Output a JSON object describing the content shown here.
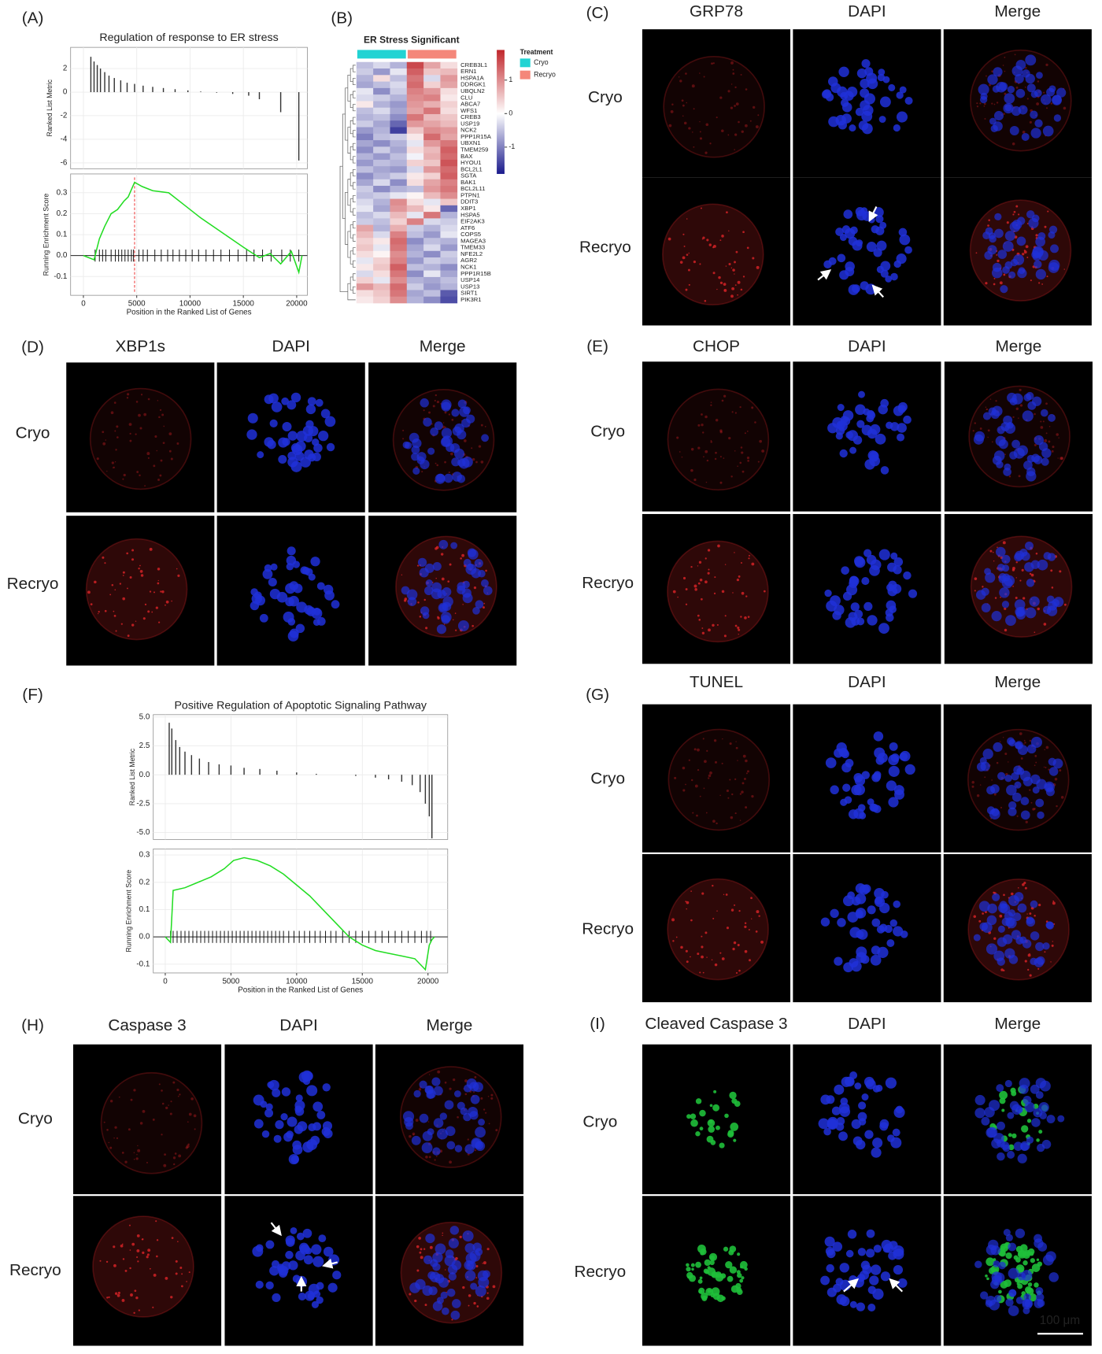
{
  "chart_data": [
    {
      "type": "gsea",
      "panel_label": "(A)",
      "title": "Regulation of response to ER stress",
      "xlabel": "Position in the Ranked List of Genes",
      "xlim": [
        -1200,
        21000
      ],
      "xticks": [
        0,
        5000,
        10000,
        15000,
        20000
      ],
      "metric_ylabel": "Ranked List Metric",
      "metric_ylim": [
        -6.5,
        3.8
      ],
      "metric_yticks": [
        2,
        0,
        -2,
        -4,
        -6
      ],
      "metric_x": [
        700,
        1000,
        1300,
        1600,
        2000,
        2400,
        2900,
        3500,
        4100,
        4800,
        5600,
        6500,
        7500,
        8600,
        9800,
        11000,
        12500,
        14000,
        15500,
        16500,
        18500,
        20200
      ],
      "metric_values": [
        3.0,
        2.6,
        2.3,
        2.0,
        1.7,
        1.4,
        1.2,
        1.0,
        0.8,
        0.7,
        0.55,
        0.45,
        0.35,
        0.25,
        0.15,
        0.05,
        -0.05,
        -0.15,
        -0.3,
        -0.6,
        -1.7,
        -5.8
      ],
      "es_ylabel": "Running Enrichment Score",
      "es_ylim": [
        -0.19,
        0.39
      ],
      "es_yticks": [
        0.3,
        0.2,
        0.1,
        {
          "value": 0,
          "label": "0.0"
        },
        -0.1
      ],
      "es_x": [
        0,
        1000,
        1500,
        2000,
        2600,
        3200,
        3800,
        4200,
        4800,
        5500,
        6500,
        8000,
        9500,
        11000,
        13000,
        15000,
        16500,
        17500,
        18500,
        19500,
        20200,
        20500
      ],
      "es_values": [
        0,
        -0.02,
        0.08,
        0.14,
        0.2,
        0.22,
        0.26,
        0.28,
        0.35,
        0.33,
        0.31,
        0.3,
        0.24,
        0.18,
        0.11,
        0.04,
        -0.01,
        0.01,
        -0.04,
        0.02,
        -0.08,
        0
      ],
      "hit_x": [
        1100,
        1500,
        1800,
        2100,
        2600,
        3000,
        3300,
        3600,
        3900,
        4200,
        4500,
        4700,
        5200,
        5600,
        6000,
        6700,
        7300,
        7900,
        8400,
        9000,
        9600,
        10200,
        10800,
        11500,
        12200,
        12900,
        13700,
        14500,
        15300,
        16000,
        16800,
        17600,
        18600,
        19400,
        20200
      ],
      "peak_x": 4800,
      "color": "#22dd22"
    },
    {
      "type": "heatmap",
      "panel_label": "(B)",
      "title": "ER Stress Significant",
      "rows": [
        "CREB3L1",
        "ERN1",
        "HSPA1A",
        "DDRGK1",
        "UBQLN2",
        "CLU",
        "ABCA7",
        "WFS1",
        "CREB3",
        "USP19",
        "NCK2",
        "PPP1R15A",
        "UBXN1",
        "TMEM259",
        "BAX",
        "HYOU1",
        "BCL2L1",
        "SGTA",
        "BAK1",
        "BCL2L11",
        "PTPN1",
        "DDIT3",
        "XBP1",
        "HSPA5",
        "EIF2AK3",
        "ATF6",
        "COPS5",
        "MAGEA3",
        "TMEM33",
        "NFE2L2",
        "AGR2",
        "NCK1",
        "PPP1R15B",
        "USP14",
        "USP13",
        "SIRT1",
        "PIK3R1"
      ],
      "values": [
        [
          -0.5,
          -0.3,
          -0.6,
          1.6,
          0.8,
          0.3
        ],
        [
          -0.4,
          -0.8,
          -0.2,
          1.4,
          0.5,
          0.6
        ],
        [
          -0.6,
          0.3,
          -0.5,
          1.2,
          -0.3,
          0.9
        ],
        [
          -0.7,
          -0.5,
          -0.3,
          1.3,
          0.4,
          0.8
        ],
        [
          -0.2,
          -0.9,
          -0.4,
          1.1,
          0.9,
          0.3
        ],
        [
          -0.3,
          -0.4,
          -0.6,
          1.0,
          1.1,
          0.2
        ],
        [
          0.2,
          -0.6,
          -0.8,
          0.9,
          0.7,
          0.4
        ],
        [
          -0.5,
          -0.3,
          -0.7,
          0.8,
          1.2,
          0.3
        ],
        [
          -0.6,
          -0.5,
          -0.9,
          1.2,
          0.6,
          0.5
        ],
        [
          -0.4,
          -0.7,
          -1.2,
          0.9,
          0.8,
          0.6
        ],
        [
          -0.8,
          -0.6,
          -1.5,
          0.5,
          1.0,
          0.9
        ],
        [
          -1.0,
          -0.5,
          -0.4,
          0.2,
          1.3,
          0.8
        ],
        [
          -0.7,
          -0.9,
          -0.6,
          -0.2,
          0.9,
          1.2
        ],
        [
          -0.9,
          -0.4,
          -0.7,
          0.3,
          0.6,
          1.4
        ],
        [
          -0.6,
          -0.8,
          -0.5,
          -0.1,
          0.7,
          1.3
        ],
        [
          -0.8,
          -0.5,
          -0.6,
          0.4,
          0.5,
          1.5
        ],
        [
          -0.5,
          -0.7,
          -0.8,
          -0.3,
          0.9,
          1.3
        ],
        [
          -0.9,
          -0.6,
          -0.4,
          0.2,
          0.4,
          1.4
        ],
        [
          -0.7,
          -0.3,
          -0.9,
          0.3,
          0.8,
          1.1
        ],
        [
          -0.4,
          -0.9,
          -0.6,
          -0.5,
          0.9,
          1.2
        ],
        [
          -0.5,
          -0.4,
          -0.2,
          0.1,
          0.6,
          1.0
        ],
        [
          -0.3,
          -0.6,
          1.0,
          0.3,
          -0.2,
          0.5
        ],
        [
          -0.2,
          -0.7,
          0.9,
          0.6,
          0.2,
          -1.2
        ],
        [
          -0.5,
          -0.3,
          0.6,
          -0.2,
          1.2,
          -0.6
        ],
        [
          -0.4,
          -0.5,
          0.4,
          1.1,
          -0.3,
          -0.4
        ],
        [
          0.8,
          -0.6,
          0.7,
          -0.4,
          -0.6,
          -0.3
        ],
        [
          0.6,
          -0.3,
          1.1,
          -0.5,
          -0.8,
          -0.2
        ],
        [
          0.4,
          0.2,
          1.3,
          -0.9,
          -0.5,
          -0.6
        ],
        [
          0.5,
          -0.2,
          1.2,
          -0.7,
          -0.3,
          -0.8
        ],
        [
          0.3,
          0.1,
          1.0,
          -0.6,
          -0.9,
          -0.4
        ],
        [
          -0.2,
          0.4,
          1.1,
          -0.8,
          -0.4,
          -0.5
        ],
        [
          0.2,
          0.5,
          1.4,
          -0.5,
          -0.6,
          -0.9
        ],
        [
          -0.3,
          0.3,
          1.2,
          -0.9,
          -0.2,
          -0.7
        ],
        [
          0.4,
          -0.2,
          1.0,
          -0.6,
          -0.7,
          -0.5
        ],
        [
          0.9,
          0.6,
          1.3,
          -0.4,
          -0.8,
          -0.6
        ],
        [
          0.3,
          0.5,
          1.2,
          -0.7,
          -0.5,
          -1.3
        ],
        [
          0.2,
          0.4,
          1.0,
          -0.6,
          -0.9,
          -1.4
        ]
      ],
      "colorbar_lim": [
        -1.8,
        1.9
      ],
      "colorbar_ticks": [
        1,
        0,
        -1
      ],
      "colors": [
        "#1a1a8c",
        "#ffffff",
        "#c0262b"
      ],
      "legend_title": "Treatment",
      "groups": [
        {
          "name": "Cryo",
          "color": "#22d3d3"
        },
        {
          "name": "Recryo",
          "color": "#f4877a"
        }
      ]
    },
    {
      "type": "gsea",
      "panel_label": "(F)",
      "title": "Positive Regulation of Apoptotic Signaling Pathway",
      "xlabel": "Position in the Ranked List of Genes",
      "xlim": [
        -915,
        21500
      ],
      "xticks": [
        0,
        5000,
        10000,
        15000,
        20000
      ],
      "metric_ylabel": "Ranked List Metric",
      "metric_ylim": [
        -5.6,
        5.2
      ],
      "metric_yticks": [
        {
          "value": 5,
          "label": "5.0"
        },
        2.5,
        {
          "value": 0,
          "label": "0.0"
        },
        -2.5,
        {
          "value": -5,
          "label": "-5.0"
        }
      ],
      "metric_x": [
        300,
        500,
        800,
        1100,
        1500,
        2000,
        2600,
        3300,
        4100,
        5000,
        6000,
        7200,
        8500,
        10000,
        11500,
        13000,
        14500,
        16000,
        17000,
        18000,
        18800,
        19400,
        19800,
        20100,
        20300
      ],
      "metric_values": [
        4.5,
        4.0,
        3.0,
        2.4,
        2.0,
        1.7,
        1.4,
        1.1,
        0.9,
        0.8,
        0.6,
        0.5,
        0.35,
        0.2,
        0.08,
        0,
        -0.1,
        -0.25,
        -0.4,
        -0.6,
        -0.9,
        -1.5,
        -2.5,
        -3.6,
        -5.5
      ],
      "es_ylabel": "Running Enrichment Score",
      "es_ylim": [
        -0.132,
        0.322
      ],
      "es_yticks": [
        0.3,
        0.2,
        0.1,
        {
          "value": 0,
          "label": "0.0"
        },
        -0.1
      ],
      "es_x": [
        0,
        400,
        600,
        1500,
        2500,
        3500,
        4500,
        5200,
        6000,
        7000,
        8000,
        9000,
        10000,
        11000,
        12000,
        13000,
        14000,
        15000,
        16000,
        17000,
        18000,
        19000,
        19800,
        20100,
        20300,
        20500
      ],
      "es_values": [
        0,
        -0.02,
        0.17,
        0.18,
        0.2,
        0.22,
        0.25,
        0.28,
        0.29,
        0.28,
        0.26,
        0.23,
        0.19,
        0.15,
        0.1,
        0.05,
        0.0,
        -0.03,
        -0.05,
        -0.06,
        -0.07,
        -0.08,
        -0.12,
        -0.03,
        -0.01,
        0
      ],
      "hit_x": [
        400,
        600,
        900,
        1200,
        1500,
        1800,
        2100,
        2400,
        2700,
        3000,
        3300,
        3600,
        3900,
        4200,
        4500,
        4800,
        5100,
        5400,
        5700,
        6000,
        6300,
        6600,
        6900,
        7200,
        7500,
        7800,
        8100,
        8400,
        8700,
        9000,
        9400,
        9800,
        10200,
        10600,
        11000,
        11400,
        11800,
        12200,
        12600,
        13000,
        13500,
        14000,
        14500,
        15000,
        15500,
        16000,
        16500,
        17000,
        17500,
        18000,
        18500,
        19000,
        19500,
        19900,
        20200
      ],
      "color": "#22dd22"
    }
  ],
  "image_panels": [
    {
      "label": "(C)",
      "headers": [
        {
          "text": "GRP78",
          "color": "#e8262a"
        },
        {
          "text": "DAPI",
          "color": "#2a5fd6"
        },
        {
          "text": "Merge",
          "color": "#222222"
        }
      ],
      "rows": [
        "Cryo",
        "Recryo"
      ]
    },
    {
      "label": "(D)",
      "headers": [
        {
          "text": "XBP1s",
          "color": "#e8262a"
        },
        {
          "text": "DAPI",
          "color": "#2a5fd6"
        },
        {
          "text": "Merge",
          "color": "#222222"
        }
      ],
      "rows": [
        "Cryo",
        "Recryo"
      ]
    },
    {
      "label": "(E)",
      "headers": [
        {
          "text": "CHOP",
          "color": "#e8262a"
        },
        {
          "text": "DAPI",
          "color": "#2a5fd6"
        },
        {
          "text": "Merge",
          "color": "#222222"
        }
      ],
      "rows": [
        "Cryo",
        "Recryo"
      ]
    },
    {
      "label": "(G)",
      "headers": [
        {
          "text": "TUNEL",
          "color": "#e8262a"
        },
        {
          "text": "DAPI",
          "color": "#2a5fd6"
        },
        {
          "text": "Merge",
          "color": "#222222"
        }
      ],
      "rows": [
        "Cryo",
        "Recryo"
      ]
    },
    {
      "label": "(H)",
      "headers": [
        {
          "text": "Caspase 3",
          "color": "#e8262a"
        },
        {
          "text": "DAPI",
          "color": "#2a5fd6"
        },
        {
          "text": "Merge",
          "color": "#222222"
        }
      ],
      "rows": [
        "Cryo",
        "Recryo"
      ]
    },
    {
      "label": "(I)",
      "headers": [
        {
          "text": "Cleaved Caspase 3",
          "color": "#1fbf3a"
        },
        {
          "text": "DAPI",
          "color": "#2a5fd6"
        },
        {
          "text": "Merge",
          "color": "#222222"
        }
      ],
      "rows": [
        "Cryo",
        "Recryo"
      ]
    }
  ],
  "scale_bar": "100 μm"
}
